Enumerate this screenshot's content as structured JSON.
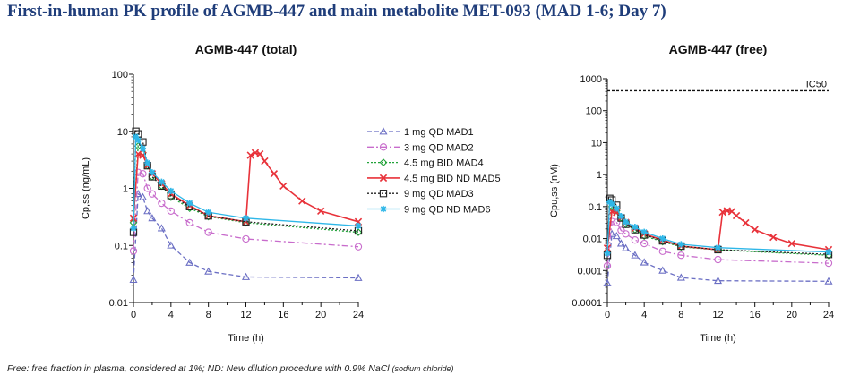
{
  "page": {
    "title": "First-in-human PK profile of AGMB-447 and main metabolite MET-093 (MAD 1-6; Day 7)",
    "footnote_main": "Free: free fraction in plasma, considered at 1%; ND: New dilution procedure with 0.9% NaCl ",
    "footnote_small": "(sodium chloride)"
  },
  "chart_data": [
    {
      "type": "line",
      "title": "AGMB-447 (total)",
      "xlabel": "Time (h)",
      "ylabel": "Cp,ss (ng/mL)",
      "yscale": "log",
      "xlim": [
        0,
        24
      ],
      "ylim": [
        0.01,
        100
      ],
      "xticks": [
        0,
        4,
        8,
        12,
        16,
        20,
        24
      ],
      "yticks": [
        0.01,
        0.1,
        1,
        10,
        100
      ],
      "ytick_labels": [
        "0.01",
        "0.1",
        "1",
        "10",
        "100"
      ],
      "series": [
        {
          "name": "1 mg QD MAD1",
          "color": "#6b6fc4",
          "dash": "5,3",
          "marker": "triangle",
          "x": [
            0,
            0.5,
            1,
            1.5,
            2,
            3,
            4,
            6,
            8,
            12,
            24
          ],
          "y": [
            0.025,
            0.8,
            0.7,
            0.4,
            0.3,
            0.2,
            0.1,
            0.05,
            0.035,
            0.028,
            0.027
          ]
        },
        {
          "name": "3 mg QD MAD2",
          "color": "#c86ccc",
          "dash": "7,3,2,3",
          "marker": "circle",
          "x": [
            0,
            0.5,
            1,
            1.5,
            2,
            3,
            4,
            6,
            8,
            12,
            24
          ],
          "y": [
            0.08,
            1.9,
            1.8,
            1.0,
            0.8,
            0.55,
            0.4,
            0.25,
            0.17,
            0.13,
            0.095
          ]
        },
        {
          "name": "4.5 mg BID MAD4",
          "color": "#22a33a",
          "dash": "2,2",
          "marker": "diamond",
          "x": [
            0,
            0.5,
            1,
            1.5,
            2,
            3,
            4,
            6,
            8,
            12,
            24
          ],
          "y": [
            0.25,
            5.5,
            4.2,
            2.5,
            1.6,
            1.1,
            0.7,
            0.45,
            0.32,
            0.25,
            0.17
          ]
        },
        {
          "name": "4.5 mg BID ND MAD5",
          "color": "#e8323a",
          "dash": "",
          "marker": "x",
          "x": [
            0,
            0.5,
            1,
            1.5,
            2,
            3,
            4,
            6,
            8,
            12,
            12.5,
            13,
            13.5,
            14,
            15,
            16,
            18,
            20,
            24
          ],
          "y": [
            0.3,
            4.0,
            3.8,
            2.5,
            1.8,
            1.2,
            0.8,
            0.5,
            0.33,
            0.26,
            3.8,
            4.2,
            4.0,
            3.0,
            1.8,
            1.1,
            0.6,
            0.4,
            0.26
          ]
        },
        {
          "name": "9 mg QD MAD3",
          "color": "#222222",
          "dash": "2,2",
          "marker": "square",
          "x": [
            0,
            0.25,
            0.5,
            1,
            1.5,
            2,
            3,
            4,
            6,
            8,
            12,
            24
          ],
          "y": [
            0.17,
            10,
            9.0,
            6.5,
            2.5,
            1.6,
            1.1,
            0.75,
            0.48,
            0.33,
            0.26,
            0.18
          ]
        },
        {
          "name": "9 mg QD ND MAD6",
          "color": "#2fb7e8",
          "dash": "",
          "marker": "star",
          "x": [
            0,
            0.25,
            0.5,
            1,
            1.5,
            2,
            3,
            4,
            6,
            8,
            12,
            24
          ],
          "y": [
            0.2,
            8.0,
            7.0,
            5.0,
            2.8,
            1.9,
            1.3,
            0.9,
            0.55,
            0.38,
            0.3,
            0.22
          ]
        }
      ]
    },
    {
      "type": "line",
      "title": "AGMB-447 (free)",
      "xlabel": "Time (h)",
      "ylabel": "Cpu,ss (nM)",
      "yscale": "log",
      "xlim": [
        0,
        24
      ],
      "ylim": [
        0.0001,
        1000
      ],
      "xticks": [
        0,
        4,
        8,
        12,
        16,
        20,
        24
      ],
      "yticks": [
        0.0001,
        0.001,
        0.01,
        0.1,
        1,
        10,
        100,
        1000
      ],
      "ytick_labels": [
        "0.0001",
        "0.001",
        "0.01",
        "0.1",
        "1",
        "10",
        "100",
        "1000"
      ],
      "reference_line": {
        "label": "IC50",
        "y": 420
      },
      "series": [
        {
          "name": "1 mg QD MAD1",
          "color": "#6b6fc4",
          "dash": "5,3",
          "marker": "triangle",
          "x": [
            0,
            0.5,
            1,
            1.5,
            2,
            3,
            4,
            6,
            8,
            12,
            24
          ],
          "y": [
            0.0004,
            0.014,
            0.012,
            0.007,
            0.005,
            0.003,
            0.0018,
            0.001,
            0.0006,
            0.00048,
            0.00046
          ]
        },
        {
          "name": "3 mg QD MAD2",
          "color": "#c86ccc",
          "dash": "7,3,2,3",
          "marker": "circle",
          "x": [
            0,
            0.5,
            1,
            1.5,
            2,
            3,
            4,
            6,
            8,
            12,
            24
          ],
          "y": [
            0.0014,
            0.034,
            0.032,
            0.018,
            0.014,
            0.009,
            0.007,
            0.004,
            0.003,
            0.0022,
            0.0017
          ]
        },
        {
          "name": "4.5 mg BID MAD4",
          "color": "#22a33a",
          "dash": "2,2",
          "marker": "diamond",
          "x": [
            0,
            0.5,
            1,
            1.5,
            2,
            3,
            4,
            6,
            8,
            12,
            24
          ],
          "y": [
            0.004,
            0.1,
            0.075,
            0.045,
            0.028,
            0.019,
            0.012,
            0.008,
            0.0055,
            0.0044,
            0.003
          ]
        },
        {
          "name": "4.5 mg BID ND MAD5",
          "color": "#e8323a",
          "dash": "",
          "marker": "x",
          "x": [
            0,
            0.5,
            1,
            1.5,
            2,
            3,
            4,
            6,
            8,
            12,
            12.5,
            13,
            13.5,
            14,
            15,
            16,
            18,
            20,
            24
          ],
          "y": [
            0.005,
            0.07,
            0.066,
            0.044,
            0.032,
            0.021,
            0.014,
            0.009,
            0.0058,
            0.0045,
            0.067,
            0.074,
            0.07,
            0.052,
            0.031,
            0.019,
            0.011,
            0.007,
            0.0045
          ]
        },
        {
          "name": "9 mg QD MAD3",
          "color": "#222222",
          "dash": "2,2",
          "marker": "square",
          "x": [
            0,
            0.25,
            0.5,
            1,
            1.5,
            2,
            3,
            4,
            6,
            8,
            12,
            24
          ],
          "y": [
            0.003,
            0.18,
            0.16,
            0.11,
            0.044,
            0.028,
            0.019,
            0.013,
            0.0085,
            0.0058,
            0.0045,
            0.0032
          ]
        },
        {
          "name": "9 mg QD ND MAD6",
          "color": "#2fb7e8",
          "dash": "",
          "marker": "star",
          "x": [
            0,
            0.25,
            0.5,
            1,
            1.5,
            2,
            3,
            4,
            6,
            8,
            12,
            24
          ],
          "y": [
            0.0035,
            0.14,
            0.12,
            0.088,
            0.05,
            0.033,
            0.023,
            0.016,
            0.01,
            0.0066,
            0.0052,
            0.0038
          ]
        }
      ]
    }
  ],
  "legend": {
    "position": "center-between-charts",
    "items": [
      "1 mg QD MAD1",
      "3 mg QD MAD2",
      "4.5 mg BID MAD4",
      "4.5 mg BID ND MAD5",
      "9 mg QD MAD3",
      "9 mg QD ND MAD6"
    ]
  }
}
